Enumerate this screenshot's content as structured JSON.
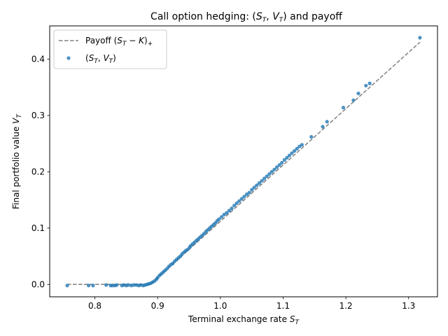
{
  "chart_data": {
    "type": "scatter",
    "title": "Call option hedging: (S_T, V_T) and payoff",
    "xlabel": "Terminal exchange rate S_T",
    "ylabel": "Final portfolio value V_T",
    "xlim": [
      0.728,
      1.346
    ],
    "ylim": [
      -0.022,
      0.459
    ],
    "xticks": [
      0.8,
      0.9,
      1.0,
      1.1,
      1.2,
      1.3
    ],
    "xtick_labels": [
      "0.8",
      "0.9",
      "1.0",
      "1.1",
      "1.2",
      "1.3"
    ],
    "yticks": [
      0.0,
      0.1,
      0.2,
      0.3,
      0.4
    ],
    "ytick_labels": [
      "0.0",
      "0.1",
      "0.2",
      "0.3",
      "0.4"
    ],
    "grid": false,
    "legend": "upper-left",
    "strike": 0.888,
    "series": [
      {
        "name": "Payoff (S_T − K)_+",
        "kind": "line",
        "style": "dashed",
        "color": "#808080",
        "x": [
          0.756,
          0.888,
          1.318
        ],
        "y": [
          0.0,
          0.0,
          0.43
        ]
      },
      {
        "name": "(S_T, V_T)",
        "kind": "scatter",
        "color": "#1f77b4",
        "x": [
          0.756,
          0.79,
          0.797,
          0.818,
          0.825,
          0.828,
          0.832,
          0.835,
          0.843,
          0.846,
          0.85,
          0.853,
          0.858,
          0.862,
          0.866,
          0.87,
          0.873,
          0.877,
          0.88,
          0.883,
          0.886,
          0.889,
          0.892,
          0.895,
          0.898,
          0.9,
          0.903,
          0.906,
          0.909,
          0.912,
          0.915,
          0.918,
          0.921,
          0.924,
          0.927,
          0.93,
          0.933,
          0.936,
          0.939,
          0.942,
          0.945,
          0.948,
          0.951,
          0.953,
          0.956,
          0.959,
          0.962,
          0.965,
          0.968,
          0.971,
          0.974,
          0.977,
          0.98,
          0.983,
          0.986,
          0.989,
          0.992,
          0.995,
          0.998,
          1.002,
          1.006,
          1.01,
          1.014,
          1.018,
          1.022,
          1.026,
          1.03,
          1.034,
          1.038,
          1.042,
          1.046,
          1.05,
          1.054,
          1.058,
          1.062,
          1.066,
          1.07,
          1.074,
          1.078,
          1.082,
          1.086,
          1.09,
          1.094,
          1.098,
          1.102,
          1.106,
          1.11,
          1.114,
          1.118,
          1.122,
          1.126,
          1.13,
          1.145,
          1.163,
          1.17,
          1.196,
          1.212,
          1.22,
          1.232,
          1.238,
          1.318
        ],
        "y": [
          -0.002,
          -0.002,
          -0.002,
          -0.001,
          -0.002,
          -0.002,
          -0.002,
          -0.001,
          -0.002,
          -0.001,
          -0.002,
          -0.001,
          -0.002,
          -0.001,
          -0.001,
          -0.002,
          -0.001,
          -0.002,
          -0.001,
          0.0,
          0.001,
          0.002,
          0.004,
          0.006,
          0.009,
          0.012,
          0.016,
          0.019,
          0.022,
          0.025,
          0.028,
          0.032,
          0.035,
          0.037,
          0.041,
          0.044,
          0.047,
          0.05,
          0.054,
          0.057,
          0.06,
          0.062,
          0.066,
          0.069,
          0.072,
          0.075,
          0.078,
          0.081,
          0.084,
          0.087,
          0.09,
          0.094,
          0.097,
          0.1,
          0.103,
          0.106,
          0.109,
          0.113,
          0.116,
          0.12,
          0.124,
          0.127,
          0.131,
          0.135,
          0.14,
          0.144,
          0.148,
          0.152,
          0.156,
          0.16,
          0.163,
          0.168,
          0.172,
          0.176,
          0.18,
          0.184,
          0.188,
          0.192,
          0.196,
          0.2,
          0.204,
          0.208,
          0.212,
          0.216,
          0.221,
          0.225,
          0.229,
          0.233,
          0.237,
          0.241,
          0.245,
          0.248,
          0.262,
          0.28,
          0.289,
          0.314,
          0.327,
          0.339,
          0.353,
          0.357,
          0.438
        ]
      }
    ]
  }
}
